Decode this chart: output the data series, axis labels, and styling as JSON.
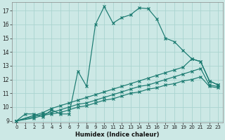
{
  "xlabel": "Humidex (Indice chaleur)",
  "bg_color": "#cce8e5",
  "line_color": "#1a7a70",
  "grid_color": "#aad4d0",
  "xlim": [
    -0.5,
    23.5
  ],
  "ylim": [
    8.9,
    17.6
  ],
  "xticks": [
    0,
    1,
    2,
    3,
    4,
    5,
    6,
    7,
    8,
    9,
    10,
    11,
    12,
    13,
    14,
    15,
    16,
    17,
    18,
    19,
    20,
    21,
    22,
    23
  ],
  "yticks": [
    9,
    10,
    11,
    12,
    13,
    14,
    15,
    16,
    17
  ],
  "series": [
    {
      "x": [
        0,
        1,
        2,
        3,
        4,
        5,
        6,
        7,
        8,
        9,
        10,
        11,
        12,
        13,
        14,
        15,
        16,
        17,
        18,
        19,
        20,
        21,
        22,
        23
      ],
      "y": [
        9.0,
        9.5,
        9.5,
        9.3,
        9.8,
        9.5,
        9.5,
        12.6,
        11.5,
        16.0,
        17.3,
        16.1,
        16.5,
        16.7,
        17.2,
        17.15,
        16.4,
        15.0,
        14.75,
        14.1,
        13.5,
        13.3,
        11.9,
        11.6
      ]
    },
    {
      "x": [
        0,
        2,
        3,
        4,
        5,
        6,
        7,
        8,
        9,
        10,
        11,
        12,
        13,
        14,
        15,
        16,
        17,
        18,
        19,
        20,
        21,
        22,
        23
      ],
      "y": [
        9.0,
        9.4,
        9.6,
        9.9,
        10.1,
        10.3,
        10.5,
        10.7,
        10.9,
        11.1,
        11.3,
        11.5,
        11.7,
        11.9,
        12.1,
        12.3,
        12.5,
        12.7,
        12.9,
        13.5,
        13.3,
        11.9,
        11.6
      ]
    },
    {
      "x": [
        0,
        2,
        3,
        4,
        5,
        6,
        7,
        8,
        9,
        10,
        11,
        12,
        13,
        14,
        15,
        16,
        17,
        18,
        19,
        20,
        21,
        22,
        23
      ],
      "y": [
        9.0,
        9.3,
        9.5,
        9.6,
        9.8,
        10.0,
        10.2,
        10.3,
        10.5,
        10.7,
        10.9,
        11.1,
        11.3,
        11.5,
        11.6,
        11.8,
        12.0,
        12.2,
        12.4,
        12.6,
        12.8,
        11.6,
        11.5
      ]
    },
    {
      "x": [
        0,
        2,
        3,
        4,
        5,
        6,
        7,
        8,
        9,
        10,
        11,
        12,
        13,
        14,
        15,
        16,
        17,
        18,
        19,
        20,
        21,
        22,
        23
      ],
      "y": [
        9.0,
        9.2,
        9.4,
        9.5,
        9.6,
        9.8,
        10.0,
        10.1,
        10.3,
        10.5,
        10.6,
        10.8,
        11.0,
        11.1,
        11.3,
        11.4,
        11.6,
        11.7,
        11.9,
        12.0,
        12.2,
        11.5,
        11.4
      ]
    }
  ]
}
